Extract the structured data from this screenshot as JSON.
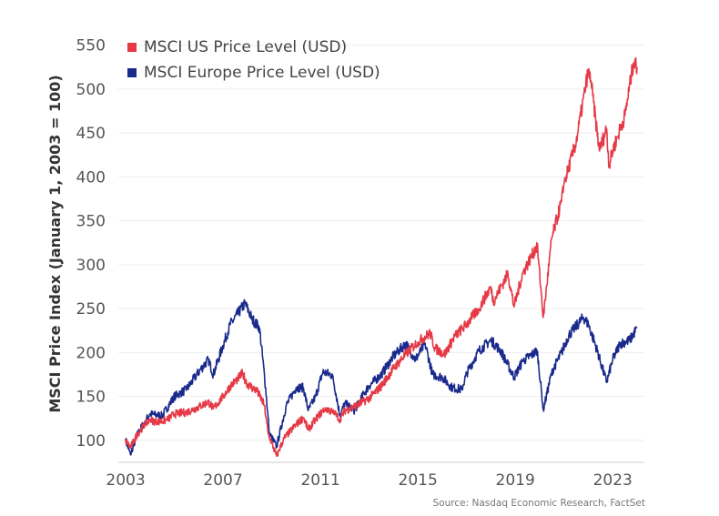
{
  "chart_data": {
    "type": "line",
    "ylabel": "MSCI Price Index (January 1, 2003 = 100)",
    "xlabel": "",
    "source": "Source: Nasdaq Economic Research, FactSet",
    "xlim": [
      2002.7,
      2024.3
    ],
    "ylim": [
      75,
      560
    ],
    "x_ticks": [
      2003,
      2007,
      2011,
      2015,
      2019,
      2023
    ],
    "x_tick_labels": [
      "2003",
      "2007",
      "2011",
      "2015",
      "2019",
      "2023"
    ],
    "y_ticks": [
      100,
      150,
      200,
      250,
      300,
      350,
      400,
      450,
      500,
      550
    ],
    "y_tick_labels": [
      "100",
      "150",
      "200",
      "250",
      "300",
      "350",
      "400",
      "450",
      "500",
      "550"
    ],
    "grid": true,
    "legend_position": "top-left",
    "series": [
      {
        "name": "MSCI US Price Level (USD)",
        "color": "#e63946",
        "points": [
          [
            2003.0,
            100
          ],
          [
            2003.2,
            92
          ],
          [
            2003.5,
            108
          ],
          [
            2003.8,
            118
          ],
          [
            2004.0,
            123
          ],
          [
            2004.3,
            121
          ],
          [
            2004.7,
            123
          ],
          [
            2005.0,
            130
          ],
          [
            2005.5,
            132
          ],
          [
            2006.0,
            138
          ],
          [
            2006.4,
            144
          ],
          [
            2006.6,
            136
          ],
          [
            2007.0,
            150
          ],
          [
            2007.3,
            162
          ],
          [
            2007.6,
            170
          ],
          [
            2007.8,
            176
          ],
          [
            2008.0,
            164
          ],
          [
            2008.4,
            156
          ],
          [
            2008.7,
            140
          ],
          [
            2008.85,
            108
          ],
          [
            2009.0,
            97
          ],
          [
            2009.2,
            82
          ],
          [
            2009.5,
            102
          ],
          [
            2010.0,
            118
          ],
          [
            2010.3,
            126
          ],
          [
            2010.5,
            112
          ],
          [
            2010.8,
            124
          ],
          [
            2011.2,
            137
          ],
          [
            2011.6,
            130
          ],
          [
            2011.8,
            124
          ],
          [
            2012.0,
            134
          ],
          [
            2012.5,
            140
          ],
          [
            2013.0,
            148
          ],
          [
            2013.5,
            162
          ],
          [
            2014.0,
            182
          ],
          [
            2014.5,
            198
          ],
          [
            2015.0,
            212
          ],
          [
            2015.5,
            222
          ],
          [
            2015.7,
            205
          ],
          [
            2016.1,
            198
          ],
          [
            2016.5,
            218
          ],
          [
            2017.0,
            232
          ],
          [
            2017.5,
            250
          ],
          [
            2018.0,
            275
          ],
          [
            2018.1,
            258
          ],
          [
            2018.7,
            290
          ],
          [
            2018.95,
            252
          ],
          [
            2019.3,
            290
          ],
          [
            2019.9,
            322
          ],
          [
            2020.15,
            240
          ],
          [
            2020.5,
            330
          ],
          [
            2020.9,
            372
          ],
          [
            2021.0,
            392
          ],
          [
            2021.5,
            440
          ],
          [
            2021.99,
            520
          ],
          [
            2022.1,
            510
          ],
          [
            2022.45,
            430
          ],
          [
            2022.75,
            455
          ],
          [
            2022.85,
            412
          ],
          [
            2023.0,
            430
          ],
          [
            2023.5,
            470
          ],
          [
            2023.85,
            530
          ],
          [
            2024.0,
            525
          ]
        ]
      },
      {
        "name": "MSCI Europe Price Level (USD)",
        "color": "#1a2a8c",
        "points": [
          [
            2003.0,
            100
          ],
          [
            2003.2,
            84
          ],
          [
            2003.5,
            108
          ],
          [
            2003.8,
            122
          ],
          [
            2004.0,
            130
          ],
          [
            2004.5,
            128
          ],
          [
            2005.0,
            150
          ],
          [
            2005.5,
            158
          ],
          [
            2006.0,
            178
          ],
          [
            2006.4,
            192
          ],
          [
            2006.6,
            175
          ],
          [
            2007.0,
            208
          ],
          [
            2007.3,
            232
          ],
          [
            2007.7,
            248
          ],
          [
            2007.9,
            256
          ],
          [
            2008.2,
            238
          ],
          [
            2008.5,
            228
          ],
          [
            2008.75,
            160
          ],
          [
            2008.9,
            108
          ],
          [
            2009.2,
            93
          ],
          [
            2009.6,
            140
          ],
          [
            2010.0,
            160
          ],
          [
            2010.3,
            160
          ],
          [
            2010.5,
            134
          ],
          [
            2010.8,
            150
          ],
          [
            2011.1,
            178
          ],
          [
            2011.5,
            174
          ],
          [
            2011.8,
            128
          ],
          [
            2012.0,
            142
          ],
          [
            2012.4,
            134
          ],
          [
            2012.8,
            154
          ],
          [
            2013.0,
            162
          ],
          [
            2013.5,
            175
          ],
          [
            2014.0,
            196
          ],
          [
            2014.5,
            210
          ],
          [
            2014.9,
            192
          ],
          [
            2015.3,
            210
          ],
          [
            2015.6,
            175
          ],
          [
            2016.0,
            172
          ],
          [
            2016.4,
            160
          ],
          [
            2016.8,
            158
          ],
          [
            2017.0,
            176
          ],
          [
            2017.5,
            202
          ],
          [
            2018.0,
            214
          ],
          [
            2018.4,
            202
          ],
          [
            2018.95,
            172
          ],
          [
            2019.3,
            190
          ],
          [
            2019.9,
            202
          ],
          [
            2020.15,
            135
          ],
          [
            2020.5,
            178
          ],
          [
            2020.9,
            200
          ],
          [
            2021.2,
            220
          ],
          [
            2021.8,
            240
          ],
          [
            2022.0,
            232
          ],
          [
            2022.3,
            208
          ],
          [
            2022.75,
            166
          ],
          [
            2023.0,
            192
          ],
          [
            2023.3,
            210
          ],
          [
            2023.7,
            214
          ],
          [
            2024.0,
            228
          ]
        ]
      }
    ]
  }
}
